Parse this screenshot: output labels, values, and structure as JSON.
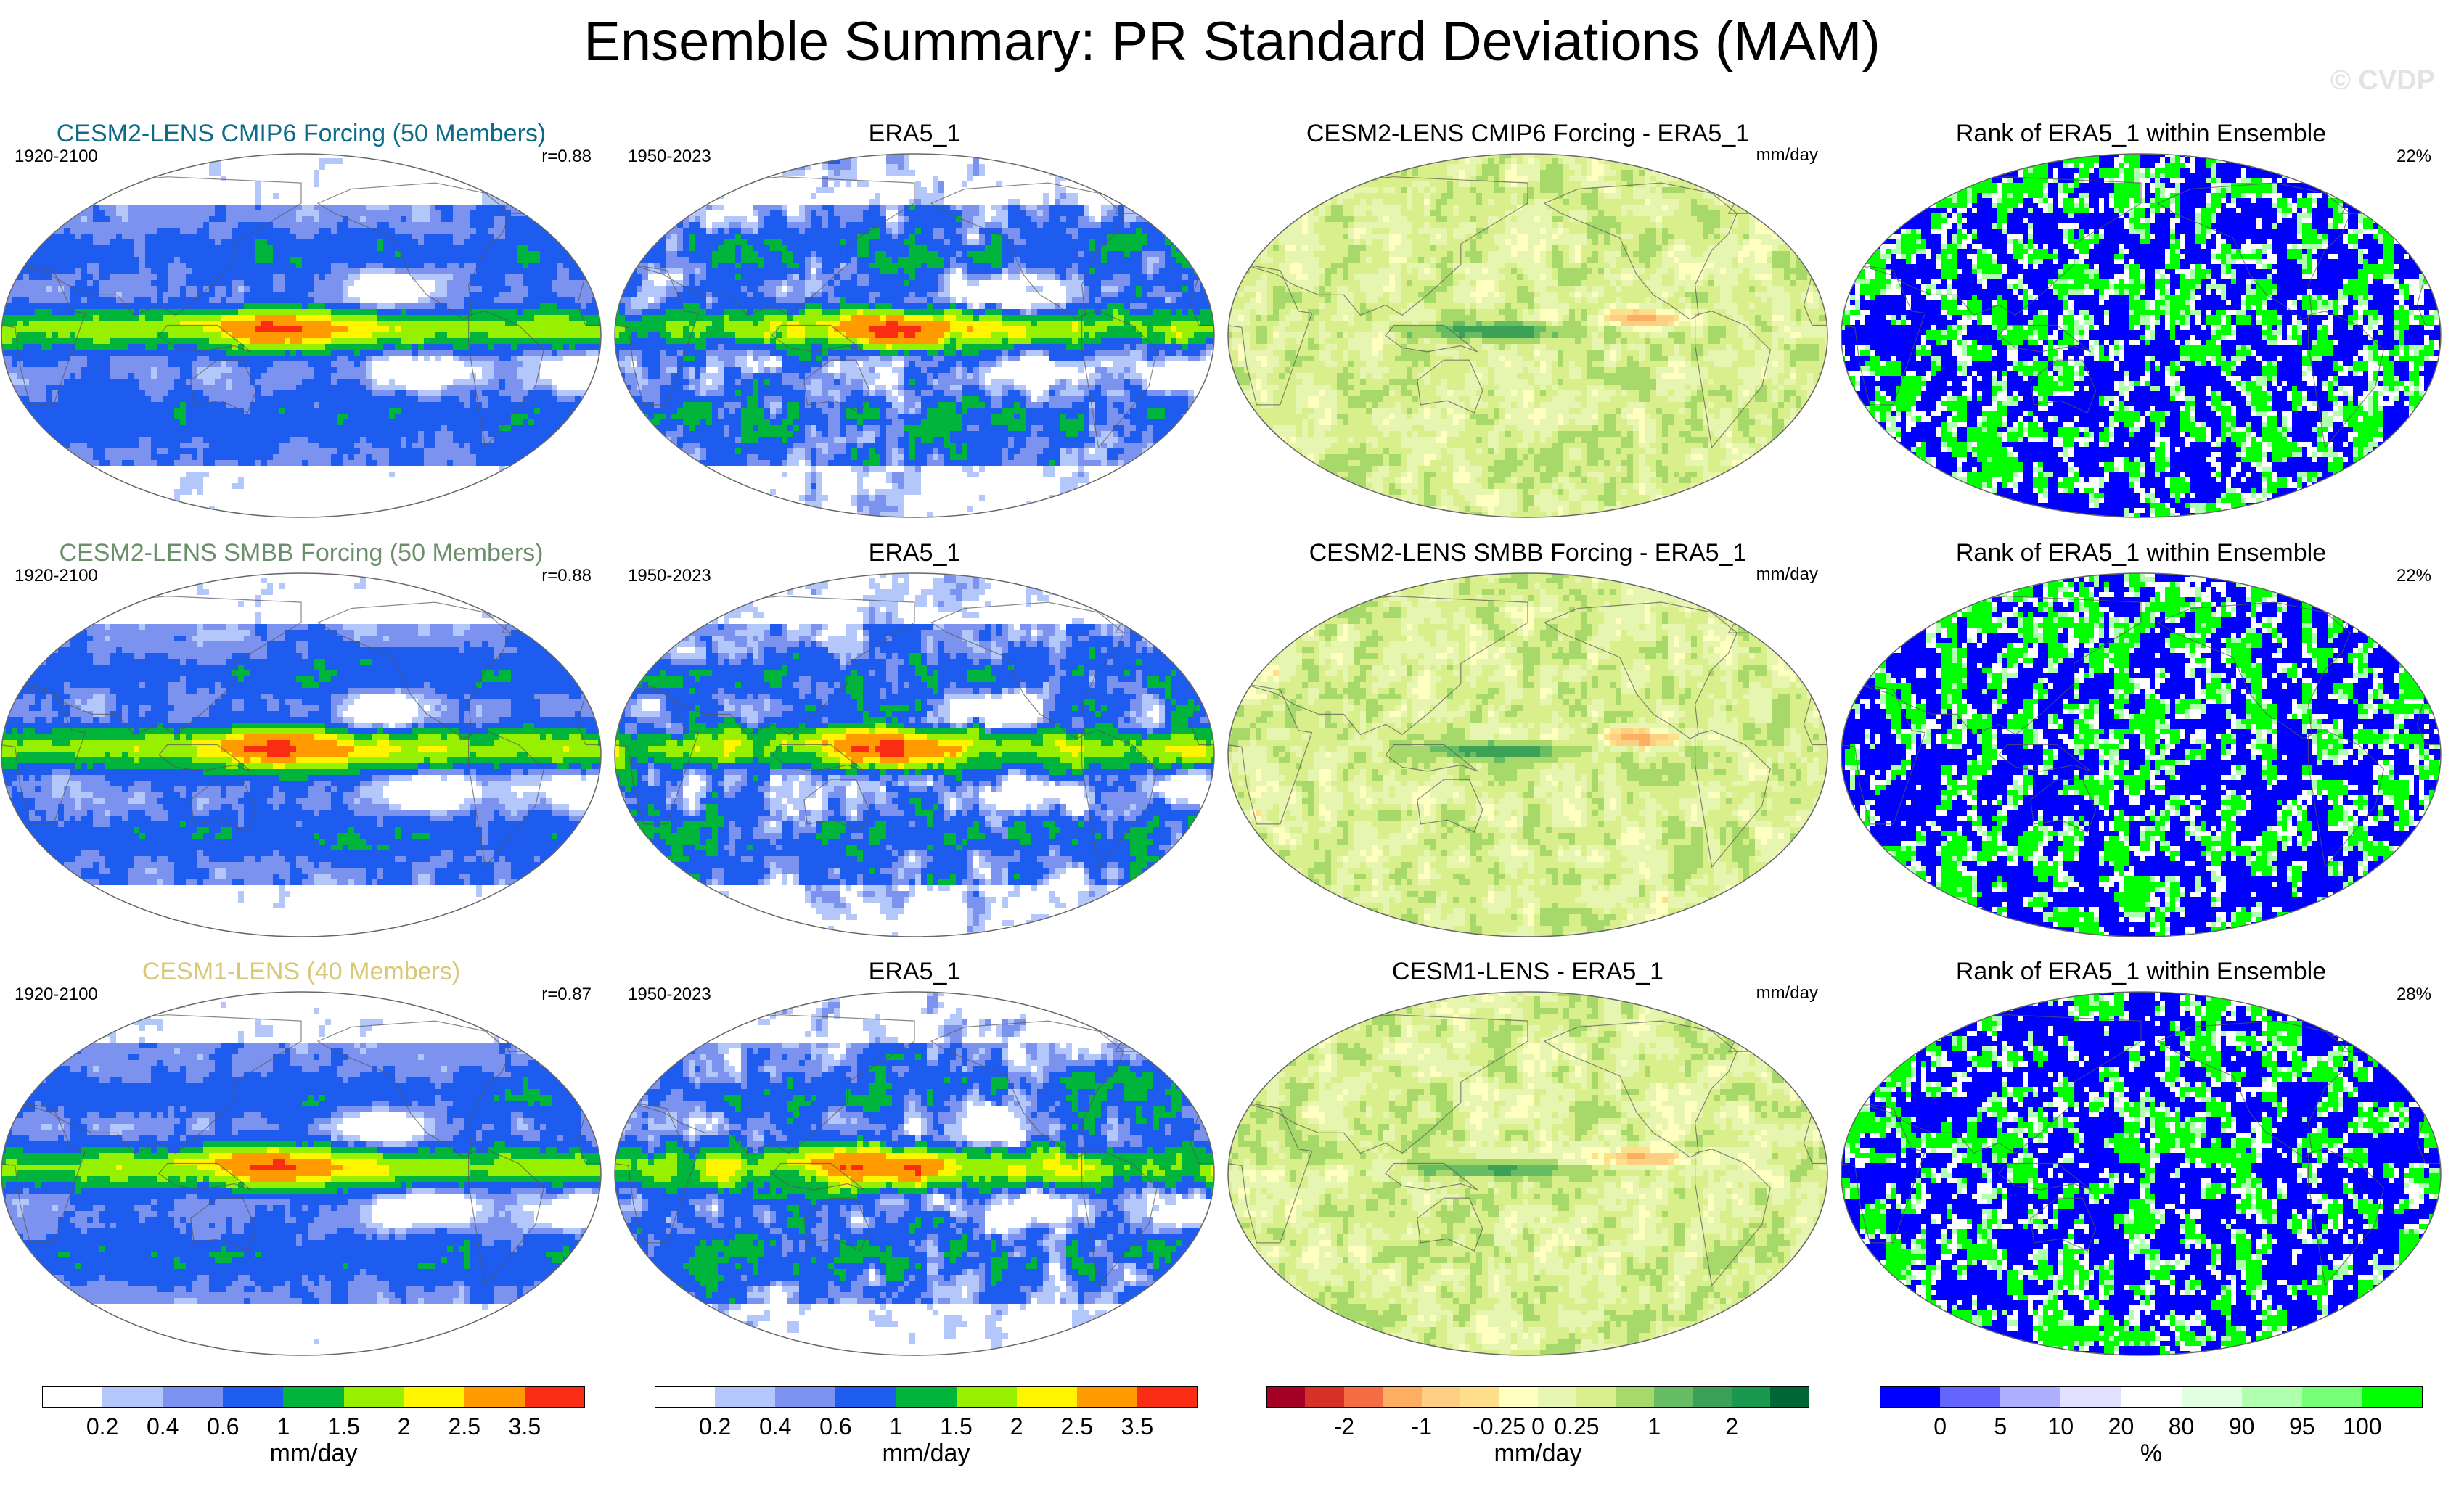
{
  "title": "Ensemble Summary: PR Standard Deviations (MAM)",
  "watermark": "© CVDP",
  "colors": {
    "sd": [
      "#ffffff",
      "#b4c7fa",
      "#7b92ee",
      "#1e5cf0",
      "#00b43c",
      "#96f000",
      "#fff500",
      "#ff9b00",
      "#fa2d14"
    ],
    "diff": [
      "#a50026",
      "#d73027",
      "#f46d43",
      "#fdae61",
      "#fdcf82",
      "#fee08b",
      "#ffffbf",
      "#e6f5b0",
      "#d9ef8b",
      "#a6d96a",
      "#66bd63",
      "#3aa156",
      "#1a9850",
      "#006837"
    ],
    "rank": [
      "#0000ff",
      "#6464ff",
      "#afafff",
      "#e1e1ff",
      "#ffffff",
      "#e1ffe1",
      "#afffaf",
      "#78ff78",
      "#00ff00"
    ]
  },
  "rows": [
    {
      "model": "CESM2-LENS CMIP6 Forcing (50 Members)",
      "model_color": "#0d6b86",
      "model_years": "1920-2100",
      "r": "r=0.88",
      "obs": "ERA5_1",
      "obs_years": "1950-2023",
      "diff_title": "CESM2-LENS CMIP6 Forcing - ERA5_1",
      "diff_unit": "mm/day",
      "rank_title": "Rank of ERA5_1 within Ensemble",
      "rank_pct": "22%"
    },
    {
      "model": "CESM2-LENS SMBB Forcing (50 Members)",
      "model_color": "#6b8f6b",
      "model_years": "1920-2100",
      "r": "r=0.88",
      "obs": "ERA5_1",
      "obs_years": "1950-2023",
      "diff_title": "CESM2-LENS SMBB Forcing - ERA5_1",
      "diff_unit": "mm/day",
      "rank_title": "Rank of ERA5_1 within Ensemble",
      "rank_pct": "22%"
    },
    {
      "model": "CESM1-LENS (40 Members)",
      "model_color": "#d9c878",
      "model_years": "1920-2100",
      "r": "r=0.87",
      "obs": "ERA5_1",
      "obs_years": "1950-2023",
      "diff_title": "CESM1-LENS - ERA5_1",
      "diff_unit": "mm/day",
      "rank_title": "Rank of ERA5_1 within Ensemble",
      "rank_pct": "28%"
    }
  ],
  "colorbars": [
    {
      "name": "model-sd",
      "ticks": [
        "0.2",
        "0.4",
        "0.6",
        "1",
        "1.5",
        "2",
        "2.5",
        "3.5"
      ],
      "unit": "mm/day"
    },
    {
      "name": "obs-sd",
      "ticks": [
        "0.2",
        "0.4",
        "0.6",
        "1",
        "1.5",
        "2",
        "2.5",
        "3.5"
      ],
      "unit": "mm/day"
    },
    {
      "name": "diff",
      "ticks": [
        "-2",
        "-1",
        "-0.25",
        "0",
        "0.25",
        "1",
        "2"
      ],
      "unit": "mm/day"
    },
    {
      "name": "rank",
      "ticks": [
        "0",
        "5",
        "10",
        "20",
        "80",
        "90",
        "95",
        "100"
      ],
      "unit": "%"
    }
  ]
}
